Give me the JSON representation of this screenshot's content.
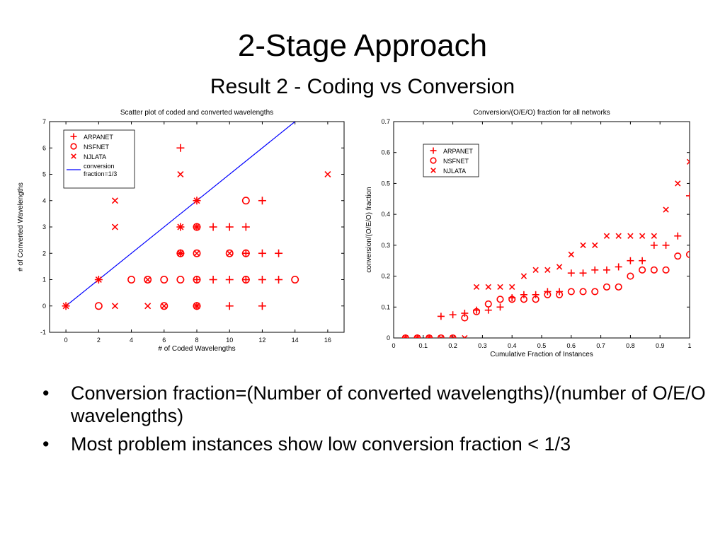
{
  "slide": {
    "title": "2-Stage Approach",
    "subtitle": "Result 2 - Coding vs Conversion",
    "bullets": [
      "Conversion fraction=(Number of converted wavelengths)/(number of O/E/O wavelengths)",
      "Most problem instances show low conversion fraction < 1/3"
    ],
    "bullet_glyph": "•"
  },
  "colors": {
    "marker": "#ff0000",
    "line": "#0000ff",
    "axis": "#000000"
  },
  "chart_data": [
    {
      "type": "scatter",
      "title": "Scatter plot of coded and converted wavelengths",
      "xlabel": "# of Coded Wavelengths",
      "ylabel": "# of Converted Wavelengths",
      "xlim": [
        -1,
        17
      ],
      "ylim": [
        -1,
        7
      ],
      "xticks": [
        0,
        2,
        4,
        6,
        8,
        10,
        12,
        14,
        16
      ],
      "yticks": [
        -1,
        0,
        1,
        2,
        3,
        4,
        5,
        6,
        7
      ],
      "grid": false,
      "legend_position": "top-left",
      "series": [
        {
          "name": "ARPANET",
          "marker": "plus",
          "points": [
            [
              0,
              0
            ],
            [
              2,
              1
            ],
            [
              7,
              6
            ],
            [
              7,
              3
            ],
            [
              7,
              2
            ],
            [
              8,
              4
            ],
            [
              8,
              3
            ],
            [
              8,
              1
            ],
            [
              8,
              0
            ],
            [
              9,
              3
            ],
            [
              9,
              1
            ],
            [
              10,
              3
            ],
            [
              10,
              1
            ],
            [
              10,
              0
            ],
            [
              11,
              3
            ],
            [
              11,
              2
            ],
            [
              11,
              1
            ],
            [
              12,
              4
            ],
            [
              12,
              2
            ],
            [
              12,
              1
            ],
            [
              12,
              0
            ],
            [
              13,
              2
            ],
            [
              13,
              1
            ]
          ]
        },
        {
          "name": "NSFNET",
          "marker": "circle",
          "points": [
            [
              2,
              0
            ],
            [
              4,
              1
            ],
            [
              5,
              1
            ],
            [
              6,
              1
            ],
            [
              6,
              0
            ],
            [
              7,
              2
            ],
            [
              7,
              1
            ],
            [
              8,
              3
            ],
            [
              8,
              2
            ],
            [
              8,
              1
            ],
            [
              8,
              0
            ],
            [
              10,
              2
            ],
            [
              11,
              4
            ],
            [
              11,
              2
            ],
            [
              11,
              1
            ],
            [
              14,
              1
            ]
          ]
        },
        {
          "name": "NJLATA",
          "marker": "x",
          "points": [
            [
              0,
              0
            ],
            [
              2,
              1
            ],
            [
              3,
              4
            ],
            [
              3,
              3
            ],
            [
              3,
              0
            ],
            [
              5,
              1
            ],
            [
              5,
              0
            ],
            [
              6,
              0
            ],
            [
              7,
              5
            ],
            [
              7,
              3
            ],
            [
              7,
              2
            ],
            [
              8,
              4
            ],
            [
              8,
              3
            ],
            [
              8,
              2
            ],
            [
              8,
              0
            ],
            [
              10,
              2
            ],
            [
              16,
              5
            ]
          ]
        }
      ],
      "lines": [
        {
          "name": "conversion fraction=1/3",
          "x": [
            0,
            14
          ],
          "y": [
            0,
            7
          ]
        }
      ]
    },
    {
      "type": "scatter",
      "title": "Conversion/(O/E/O) fraction for all networks",
      "xlabel": "Cumulative Fraction of Instances",
      "ylabel": "conversion/(O/E/O) fraction",
      "xlim": [
        0,
        1
      ],
      "ylim": [
        0,
        0.7
      ],
      "xticks": [
        "0",
        "0.1",
        "0.2",
        "0.3",
        "0.4",
        "0.5",
        "0.6",
        "0.7",
        "0.8",
        "0.9",
        "1"
      ],
      "yticks": [
        "0",
        "0.1",
        "0.2",
        "0.3",
        "0.4",
        "0.5",
        "0.6",
        "0.7"
      ],
      "grid": false,
      "legend_position": "top-left",
      "series": [
        {
          "name": "ARPANET",
          "marker": "plus",
          "x": [
            0.04,
            0.08,
            0.12,
            0.16,
            0.2,
            0.24,
            0.28,
            0.32,
            0.36,
            0.4,
            0.44,
            0.48,
            0.52,
            0.56,
            0.6,
            0.64,
            0.68,
            0.72,
            0.76,
            0.8,
            0.84,
            0.88,
            0.92,
            0.96,
            1.0
          ],
          "y": [
            0,
            0,
            0,
            0.07,
            0.075,
            0.08,
            0.09,
            0.09,
            0.1,
            0.13,
            0.14,
            0.14,
            0.15,
            0.15,
            0.21,
            0.21,
            0.22,
            0.22,
            0.23,
            0.25,
            0.25,
            0.3,
            0.3,
            0.33,
            0.46
          ]
        },
        {
          "name": "NSFNET",
          "marker": "circle",
          "x": [
            0.04,
            0.08,
            0.12,
            0.16,
            0.2,
            0.24,
            0.28,
            0.32,
            0.36,
            0.4,
            0.44,
            0.48,
            0.52,
            0.56,
            0.6,
            0.64,
            0.68,
            0.72,
            0.76,
            0.8,
            0.84,
            0.88,
            0.92,
            0.96,
            1.0
          ],
          "y": [
            0,
            0,
            0,
            0,
            0,
            0.065,
            0.085,
            0.11,
            0.125,
            0.125,
            0.125,
            0.125,
            0.14,
            0.14,
            0.15,
            0.15,
            0.15,
            0.165,
            0.165,
            0.2,
            0.22,
            0.22,
            0.22,
            0.265,
            0.27
          ]
        },
        {
          "name": "NJLATA",
          "marker": "x",
          "x": [
            0.04,
            0.08,
            0.12,
            0.16,
            0.2,
            0.24,
            0.28,
            0.32,
            0.36,
            0.4,
            0.44,
            0.48,
            0.52,
            0.56,
            0.6,
            0.64,
            0.68,
            0.72,
            0.76,
            0.8,
            0.84,
            0.88,
            0.92,
            0.96,
            1.0
          ],
          "y": [
            0,
            0,
            0,
            0,
            0,
            0,
            0.165,
            0.165,
            0.165,
            0.165,
            0.2,
            0.22,
            0.22,
            0.23,
            0.27,
            0.3,
            0.3,
            0.33,
            0.33,
            0.33,
            0.33,
            0.33,
            0.415,
            0.5,
            0.57
          ]
        }
      ]
    }
  ]
}
